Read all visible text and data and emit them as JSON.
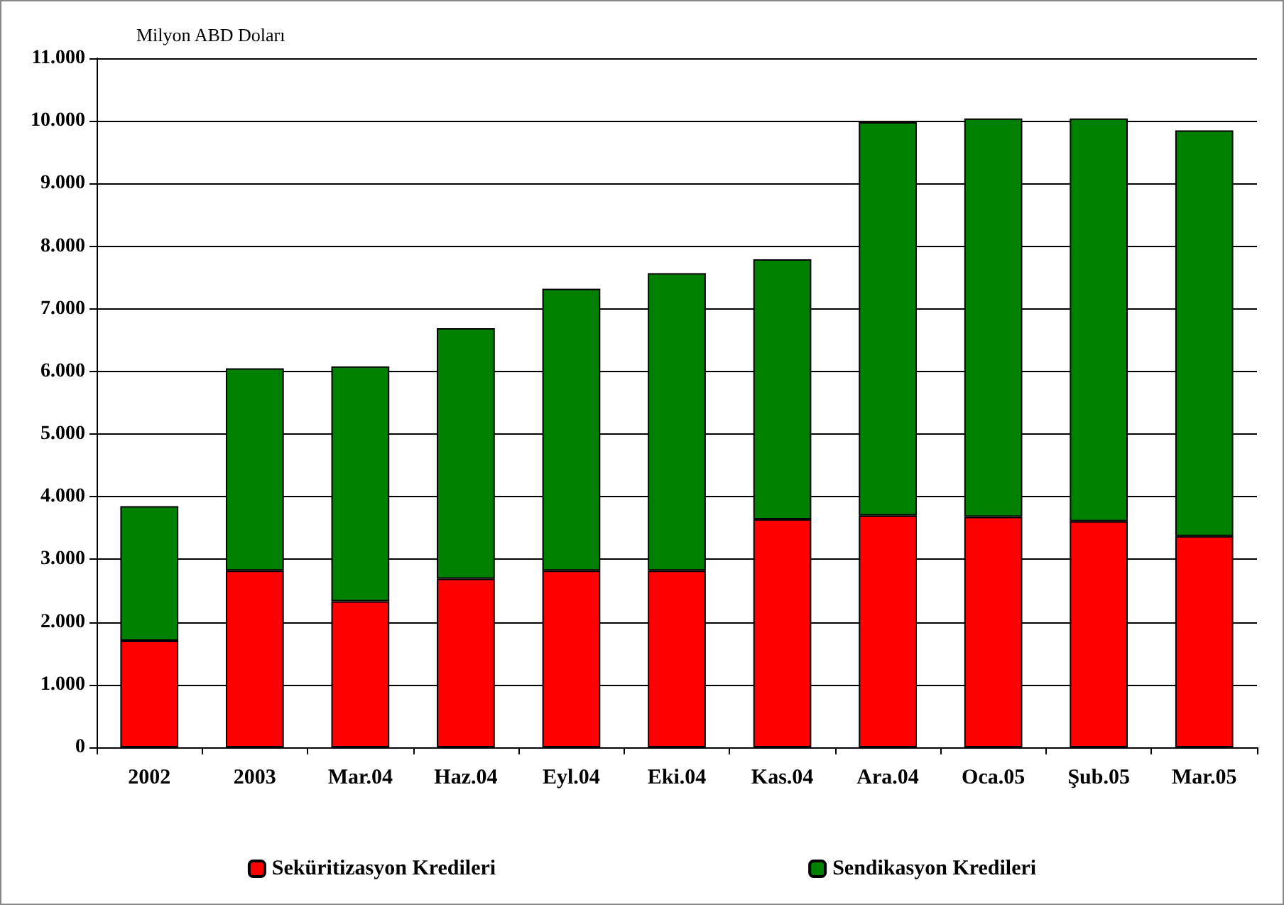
{
  "chart_data": {
    "type": "bar",
    "stacked": true,
    "ylabel": "Milyon ABD Doları",
    "categories": [
      "2002",
      "2003",
      "Mar.04",
      "Haz.04",
      "Eyl.04",
      "Eki.04",
      "Kas.04",
      "Ara.04",
      "Oca.05",
      "Şub.05",
      "Mar.05"
    ],
    "series": [
      {
        "name": "Seküritizasyon Kredileri",
        "color": "#ff0000",
        "values": [
          1700,
          2820,
          2330,
          2690,
          2820,
          2820,
          3640,
          3700,
          3680,
          3610,
          3370
        ]
      },
      {
        "name": "Sendikasyon Kredileri",
        "color": "#008000",
        "values": [
          2150,
          3230,
          3750,
          4000,
          4500,
          4750,
          4150,
          6280,
          6360,
          6430,
          6480
        ]
      }
    ],
    "ylim": [
      0,
      11000
    ],
    "yticks": [
      0,
      {
        "value": 1000,
        "label": "1.000"
      },
      {
        "value": 2000,
        "label": "2.000"
      },
      {
        "value": 3000,
        "label": "3.000"
      },
      {
        "value": 4000,
        "label": "4.000"
      },
      {
        "value": 5000,
        "label": "5.000"
      },
      {
        "value": 6000,
        "label": "6.000"
      },
      {
        "value": 7000,
        "label": "7.000"
      },
      {
        "value": 8000,
        "label": "8.000"
      },
      {
        "value": 9000,
        "label": "9.000"
      },
      {
        "value": 10000,
        "label": "10.000"
      },
      {
        "value": 11000,
        "label": "11.000"
      }
    ],
    "grid": "y",
    "legend": "bottom"
  }
}
